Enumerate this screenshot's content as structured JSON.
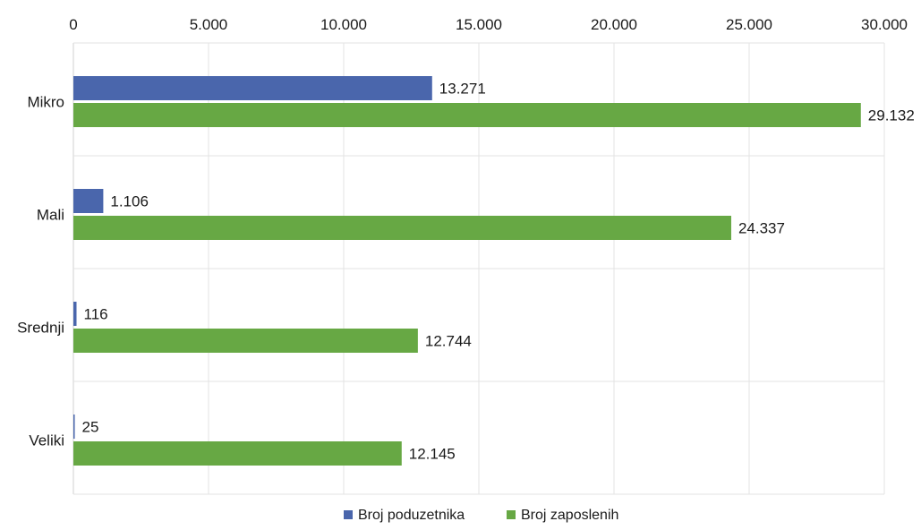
{
  "chart_data": {
    "type": "bar",
    "orientation": "horizontal",
    "categories": [
      "Mikro",
      "Mali",
      "Srednji",
      "Veliki"
    ],
    "series": [
      {
        "name": "Broj poduzetnika",
        "values": [
          13271,
          1106,
          116,
          25
        ],
        "labels": [
          "13.271",
          "1.106",
          "116",
          "25"
        ]
      },
      {
        "name": "Broj zaposlenih",
        "values": [
          29132,
          24337,
          12744,
          12145
        ],
        "labels": [
          "29.132",
          "24.337",
          "12.744",
          "12.145"
        ]
      }
    ],
    "xlim": [
      0,
      30000
    ],
    "xticks": [
      0,
      5000,
      10000,
      15000,
      20000,
      25000,
      30000
    ],
    "xtick_labels": [
      "0",
      "5.000",
      "10.000",
      "15.000",
      "20.000",
      "25.000",
      "30.000"
    ],
    "x_axis_position": "top",
    "grid": true,
    "legend_position": "bottom",
    "title": "",
    "xlabel": "",
    "ylabel": ""
  },
  "colors": {
    "Broj poduzetnika": "#4a66ac",
    "Broj zaposlenih": "#67a844"
  }
}
